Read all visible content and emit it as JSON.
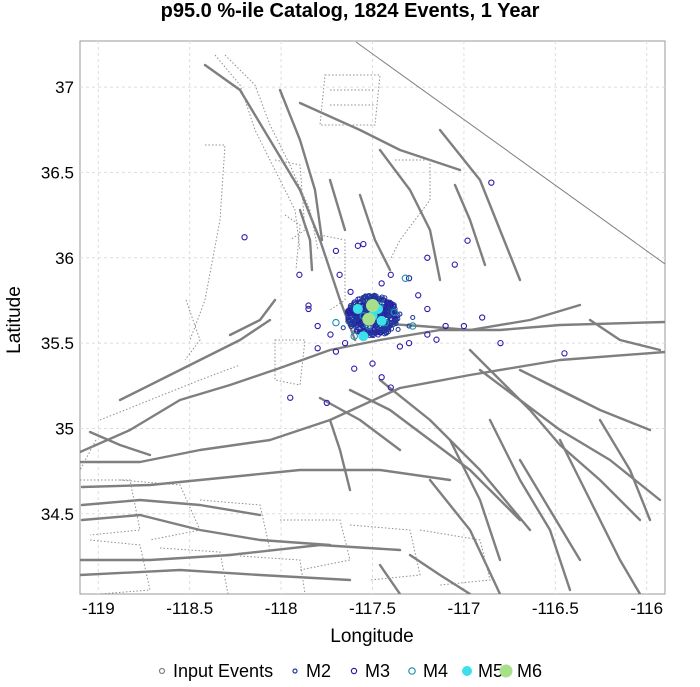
{
  "chart_data": {
    "type": "scatter",
    "title": "p95.0 %-ile Catalog, 1824 Events, 1 Year",
    "xlabel": "Longitude",
    "ylabel": "Latitude",
    "xlim": [
      -119.1,
      -115.9
    ],
    "ylim": [
      34.03,
      37.27
    ],
    "xticks": [
      -119,
      -118.5,
      -118,
      -117.5,
      -117,
      -116.5,
      -116
    ],
    "xtick_labels": [
      "-119",
      "-118.5",
      "-118",
      "-117.5",
      "-117",
      "-116.5",
      "-116"
    ],
    "yticks": [
      34.5,
      35,
      35.5,
      36,
      36.5,
      37
    ],
    "ytick_labels": [
      "34.5",
      "35",
      "35.5",
      "36",
      "36.5",
      "37"
    ],
    "grid": true,
    "legend_position": "bottom",
    "legend": [
      {
        "name": "Input Events",
        "color": "#808080",
        "filled": false
      },
      {
        "name": "M2",
        "color": "#1f3a9a",
        "filled": false
      },
      {
        "name": "M3",
        "color": "#2a1aa8",
        "filled": false
      },
      {
        "name": "M4",
        "color": "#1f8fb0",
        "filled": false
      },
      {
        "name": "M5",
        "color": "#3ce0e8",
        "filled": true
      },
      {
        "name": "M6",
        "color": "#a8e08a",
        "filled": true
      }
    ],
    "series": [
      {
        "name": "M2",
        "color": "#1f3a9a",
        "points": [
          [
            -117.55,
            35.62
          ],
          [
            -117.52,
            35.65
          ],
          [
            -117.48,
            35.6
          ],
          [
            -117.5,
            35.7
          ],
          [
            -117.45,
            35.66
          ],
          [
            -117.58,
            35.68
          ],
          [
            -117.47,
            35.72
          ],
          [
            -117.42,
            35.64
          ],
          [
            -117.6,
            35.6
          ],
          [
            -117.53,
            35.57
          ],
          [
            -117.4,
            35.7
          ],
          [
            -117.38,
            35.62
          ],
          [
            -117.62,
            35.72
          ],
          [
            -117.55,
            35.75
          ],
          [
            -117.35,
            35.67
          ],
          [
            -117.5,
            35.55
          ],
          [
            -117.44,
            35.58
          ],
          [
            -117.57,
            35.71
          ],
          [
            -117.41,
            35.74
          ],
          [
            -117.63,
            35.64
          ],
          [
            -117.36,
            35.58
          ],
          [
            -117.49,
            35.78
          ],
          [
            -117.3,
            35.6
          ],
          [
            -117.66,
            35.59
          ],
          [
            -117.28,
            35.65
          ]
        ]
      },
      {
        "name": "M3",
        "color": "#2a1aa8",
        "points": [
          [
            -118.2,
            36.12
          ],
          [
            -117.9,
            35.9
          ],
          [
            -117.85,
            35.7
          ],
          [
            -117.7,
            36.04
          ],
          [
            -117.58,
            36.07
          ],
          [
            -117.55,
            36.08
          ],
          [
            -117.4,
            35.9
          ],
          [
            -117.3,
            35.88
          ],
          [
            -117.2,
            36.0
          ],
          [
            -117.05,
            35.96
          ],
          [
            -116.98,
            36.1
          ],
          [
            -116.85,
            36.44
          ],
          [
            -117.0,
            35.6
          ],
          [
            -116.9,
            35.65
          ],
          [
            -116.8,
            35.5
          ],
          [
            -116.45,
            35.44
          ],
          [
            -117.8,
            35.47
          ],
          [
            -117.95,
            35.18
          ],
          [
            -117.75,
            35.15
          ],
          [
            -117.6,
            35.35
          ],
          [
            -117.5,
            35.38
          ],
          [
            -117.45,
            35.3
          ],
          [
            -117.4,
            35.24
          ],
          [
            -117.3,
            35.5
          ],
          [
            -117.2,
            35.55
          ],
          [
            -117.15,
            35.52
          ],
          [
            -117.7,
            35.45
          ],
          [
            -117.62,
            35.8
          ],
          [
            -117.73,
            35.55
          ],
          [
            -117.25,
            35.78
          ],
          [
            -117.2,
            35.7
          ],
          [
            -117.8,
            35.6
          ],
          [
            -117.85,
            35.72
          ],
          [
            -117.65,
            35.5
          ],
          [
            -117.35,
            35.48
          ],
          [
            -117.1,
            35.6
          ],
          [
            -117.45,
            35.85
          ],
          [
            -117.68,
            35.9
          ]
        ]
      },
      {
        "name": "M4",
        "color": "#1f8fb0",
        "points": [
          [
            -117.46,
            35.72
          ],
          [
            -117.52,
            35.6
          ],
          [
            -117.43,
            35.62
          ],
          [
            -117.55,
            35.66
          ],
          [
            -117.38,
            35.68
          ],
          [
            -117.32,
            35.88
          ],
          [
            -117.7,
            35.62
          ],
          [
            -117.28,
            35.6
          ],
          [
            -117.6,
            35.54
          ]
        ]
      },
      {
        "name": "M5",
        "color": "#3ce0e8",
        "points": [
          [
            -117.58,
            35.7
          ],
          [
            -117.5,
            35.66
          ],
          [
            -117.45,
            35.63
          ],
          [
            -117.55,
            35.54
          ],
          [
            -117.47,
            35.7
          ]
        ]
      },
      {
        "name": "M6",
        "color": "#a8e08a",
        "points": [
          [
            -117.5,
            35.72
          ],
          [
            -117.52,
            35.64
          ]
        ]
      }
    ]
  }
}
